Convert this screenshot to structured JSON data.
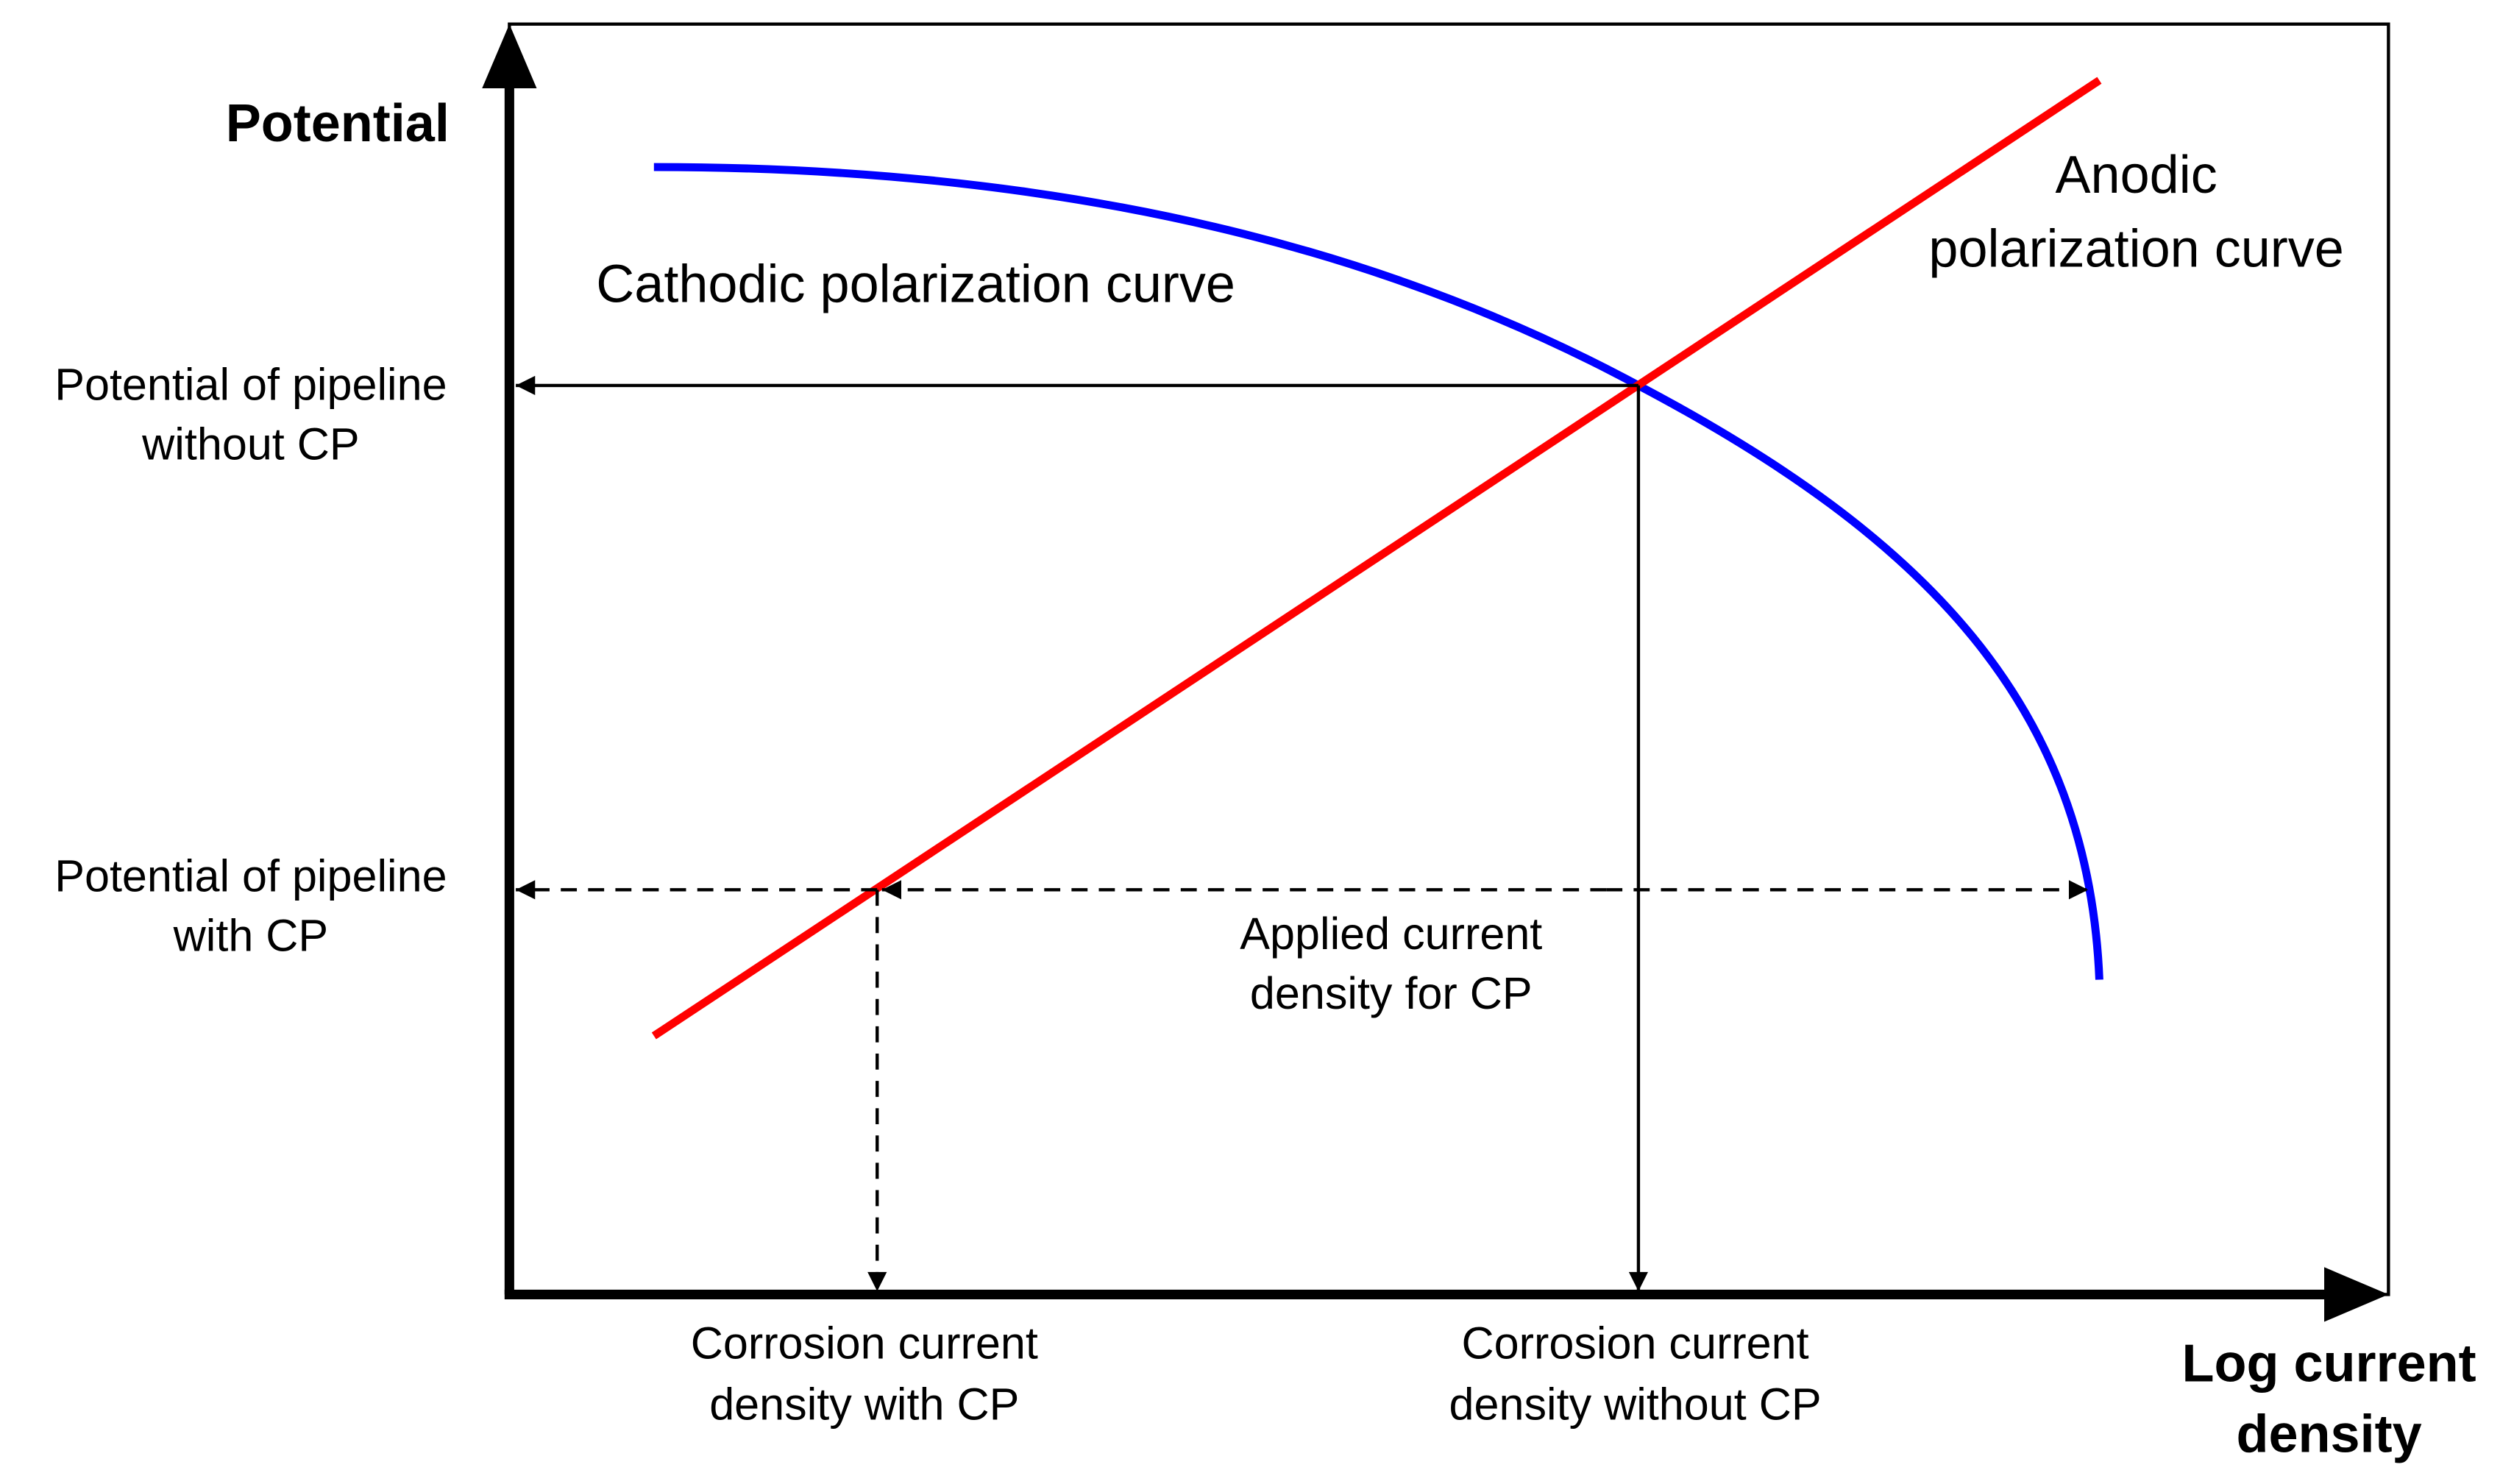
{
  "axes": {
    "y_label": "Potential",
    "x_label": [
      "Log current",
      "density"
    ]
  },
  "curves": {
    "cathodic": "Cathodic polarization curve",
    "anodic": [
      "Anodic",
      "polarization curve"
    ]
  },
  "annotations": {
    "potential_without_cp": [
      "Potential of pipeline",
      "without CP"
    ],
    "potential_with_cp": [
      "Potential of pipeline",
      "with CP"
    ],
    "applied_current": [
      "Applied current",
      "density for CP"
    ],
    "corrosion_with_cp": [
      "Corrosion current",
      "density with CP"
    ],
    "corrosion_without_cp": [
      "Corrosion current",
      "density without CP"
    ]
  }
}
